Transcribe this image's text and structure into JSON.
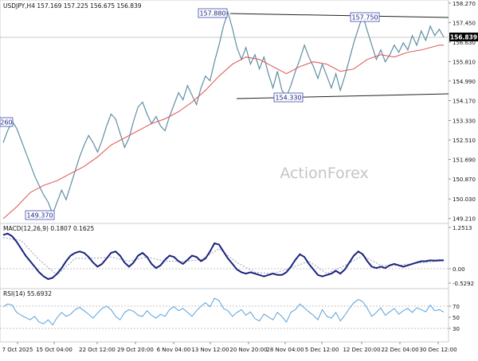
{
  "chart_data": [
    {
      "panel": "price",
      "type": "line",
      "title": "USDJPY,H4  157.169 157.225 156.675 156.839",
      "watermark": "ActionForex",
      "ylim": [
        149.0,
        158.4
      ],
      "y_ticks": [
        "158.270",
        "157.450",
        "156.630",
        "155.810",
        "154.990",
        "154.170",
        "153.330",
        "152.510",
        "151.690",
        "150.870",
        "150.030",
        "149.210"
      ],
      "current_price": "156.839",
      "series": [
        {
          "name": "USDJPY H4",
          "color": "#5f8fa3",
          "x": [
            0,
            2,
            4,
            6,
            8,
            10,
            12,
            14,
            16,
            18,
            20,
            22,
            24,
            26,
            28,
            30,
            32,
            34,
            36,
            38,
            40,
            42,
            44,
            46,
            48,
            50,
            52,
            54,
            56,
            58,
            60,
            62,
            64,
            66,
            68,
            70,
            72,
            74,
            76,
            78,
            80,
            82,
            84,
            86,
            88,
            90,
            92,
            94,
            96,
            98,
            100,
            102,
            104,
            106,
            108,
            110,
            112,
            114,
            116,
            118,
            120,
            122,
            124,
            126,
            128,
            130,
            132,
            134,
            136,
            138,
            140,
            142,
            144,
            146,
            148,
            150,
            152,
            154,
            156,
            158,
            160,
            162,
            164,
            166,
            168,
            170,
            172,
            174,
            176,
            178,
            180,
            182,
            184,
            186,
            188,
            190,
            192,
            194,
            196
          ],
          "values": [
            152.4,
            152.9,
            153.3,
            153.0,
            152.5,
            152.0,
            151.5,
            151.0,
            150.6,
            150.2,
            149.9,
            149.4,
            149.9,
            150.4,
            150.0,
            150.6,
            151.2,
            151.8,
            152.3,
            152.7,
            152.4,
            152.0,
            152.5,
            153.1,
            153.6,
            153.4,
            152.8,
            152.2,
            152.6,
            153.3,
            153.9,
            154.1,
            153.6,
            153.2,
            153.5,
            153.1,
            152.9,
            153.5,
            154.0,
            154.5,
            154.2,
            154.8,
            154.4,
            154.0,
            154.7,
            155.2,
            155.0,
            155.8,
            156.5,
            157.3,
            157.88,
            157.2,
            156.4,
            155.9,
            156.4,
            155.7,
            156.1,
            155.5,
            156.0,
            155.3,
            154.7,
            155.4,
            154.6,
            154.33,
            154.8,
            155.4,
            155.9,
            156.5,
            156.0,
            155.6,
            155.1,
            155.7,
            155.2,
            154.7,
            155.3,
            154.6,
            155.2,
            155.9,
            156.6,
            157.2,
            157.75,
            157.1,
            156.5,
            155.9,
            156.3,
            155.8,
            156.1,
            156.5,
            156.2,
            156.6,
            156.3,
            156.9,
            156.5,
            157.1,
            156.7,
            157.3,
            156.9,
            157.169,
            156.839
          ]
        },
        {
          "name": "Moving average",
          "color": "#e05050",
          "x": [
            0,
            6,
            12,
            18,
            24,
            30,
            36,
            42,
            48,
            54,
            60,
            66,
            72,
            78,
            84,
            90,
            96,
            102,
            108,
            114,
            120,
            126,
            132,
            138,
            144,
            150,
            156,
            162,
            168,
            174,
            180,
            186,
            190,
            194,
            196
          ],
          "values": [
            149.2,
            149.7,
            150.3,
            150.6,
            150.8,
            151.1,
            151.4,
            151.8,
            152.3,
            152.6,
            152.9,
            153.2,
            153.4,
            153.7,
            154.1,
            154.6,
            155.2,
            155.7,
            156.0,
            155.9,
            155.6,
            155.3,
            155.6,
            155.8,
            155.7,
            155.4,
            155.5,
            155.9,
            156.1,
            156.0,
            156.2,
            156.3,
            156.4,
            156.5,
            156.5
          ]
        }
      ],
      "annotations": [
        "157.880",
        "157.750",
        "154.330",
        "149.370",
        "260"
      ]
    },
    {
      "panel": "macd",
      "type": "line",
      "title": "MACD(12,26,9) 0.1807 0.1625",
      "ylim": [
        -0.7,
        1.4
      ],
      "y_ticks": [
        "1.2513",
        "0.00",
        "-0.5292"
      ],
      "series": [
        {
          "name": "MACD",
          "color": "#1a237e",
          "x": [
            0,
            2,
            4,
            6,
            8,
            10,
            12,
            14,
            16,
            18,
            20,
            22,
            24,
            26,
            28,
            30,
            32,
            34,
            36,
            38,
            40,
            42,
            44,
            46,
            48,
            50,
            52,
            54,
            56,
            58,
            60,
            62,
            64,
            66,
            68,
            70,
            72,
            74,
            76,
            78,
            80,
            82,
            84,
            86,
            88,
            90,
            92,
            94,
            96,
            98,
            100,
            102,
            104,
            106,
            108,
            110,
            112,
            114,
            116,
            118,
            120,
            122,
            124,
            126,
            128,
            130,
            132,
            134,
            136,
            138,
            140,
            142,
            144,
            146,
            148,
            150,
            152,
            154,
            156,
            158,
            160,
            162,
            164,
            166,
            168,
            170,
            172,
            174,
            176,
            178,
            180,
            182,
            184,
            186,
            188,
            190,
            192,
            194,
            196
          ],
          "values": [
            1.1,
            1.15,
            1.05,
            0.85,
            0.6,
            0.35,
            0.15,
            -0.05,
            -0.25,
            -0.4,
            -0.5,
            -0.45,
            -0.3,
            -0.1,
            0.15,
            0.35,
            0.45,
            0.5,
            0.45,
            0.3,
            0.1,
            -0.05,
            0.05,
            0.25,
            0.45,
            0.5,
            0.35,
            0.1,
            -0.05,
            0.1,
            0.35,
            0.45,
            0.3,
            0.05,
            -0.1,
            0.0,
            0.2,
            0.35,
            0.3,
            0.15,
            0.05,
            0.2,
            0.35,
            0.3,
            0.15,
            0.25,
            0.5,
            0.8,
            0.75,
            0.5,
            0.25,
            0.05,
            -0.15,
            -0.25,
            -0.3,
            -0.25,
            -0.3,
            -0.35,
            -0.4,
            -0.35,
            -0.3,
            -0.35,
            -0.35,
            -0.25,
            -0.05,
            0.2,
            0.4,
            0.3,
            0.05,
            -0.15,
            -0.35,
            -0.4,
            -0.35,
            -0.3,
            -0.2,
            -0.3,
            -0.15,
            0.1,
            0.35,
            0.5,
            0.4,
            0.15,
            -0.05,
            -0.1,
            -0.05,
            -0.1,
            0.0,
            0.05,
            0.0,
            -0.05,
            0.0,
            0.05,
            0.1,
            0.15,
            0.15,
            0.18,
            0.17,
            0.18,
            0.1807
          ]
        },
        {
          "name": "Signal",
          "color": "#9aa0b5",
          "x": [
            0,
            8,
            16,
            24,
            32,
            40,
            48,
            56,
            64,
            72,
            80,
            88,
            96,
            104,
            112,
            120,
            128,
            136,
            144,
            152,
            160,
            168,
            176,
            184,
            196
          ],
          "values": [
            1.0,
            0.9,
            0.2,
            -0.35,
            0.25,
            0.25,
            0.3,
            0.15,
            0.3,
            0.15,
            0.15,
            0.2,
            0.6,
            0.1,
            -0.25,
            -0.3,
            -0.1,
            0.15,
            -0.3,
            0.0,
            0.35,
            0.0,
            0.0,
            0.08,
            0.1625
          ]
        }
      ]
    },
    {
      "panel": "rsi",
      "type": "line",
      "title": "RSI(14) 55.6932",
      "ylim": [
        10,
        90
      ],
      "y_ticks": [
        "70",
        "50",
        "30"
      ],
      "series": [
        {
          "name": "RSI(14)",
          "color": "#5aa0d8",
          "x": [
            0,
            2,
            4,
            6,
            8,
            10,
            12,
            14,
            16,
            18,
            20,
            22,
            24,
            26,
            28,
            30,
            32,
            34,
            36,
            38,
            40,
            42,
            44,
            46,
            48,
            50,
            52,
            54,
            56,
            58,
            60,
            62,
            64,
            66,
            68,
            70,
            72,
            74,
            76,
            78,
            80,
            82,
            84,
            86,
            88,
            90,
            92,
            94,
            96,
            98,
            100,
            102,
            104,
            106,
            108,
            110,
            112,
            114,
            116,
            118,
            120,
            122,
            124,
            126,
            128,
            130,
            132,
            134,
            136,
            138,
            140,
            142,
            144,
            146,
            148,
            150,
            152,
            154,
            156,
            158,
            160,
            162,
            164,
            166,
            168,
            170,
            172,
            174,
            176,
            178,
            180,
            182,
            184,
            186,
            188,
            190,
            192,
            194,
            196
          ],
          "values": [
            65,
            70,
            68,
            55,
            50,
            46,
            42,
            48,
            38,
            35,
            42,
            33,
            46,
            55,
            48,
            52,
            60,
            64,
            58,
            52,
            45,
            54,
            62,
            66,
            60,
            48,
            42,
            55,
            60,
            57,
            50,
            48,
            58,
            50,
            45,
            52,
            48,
            60,
            65,
            58,
            62,
            55,
            48,
            58,
            66,
            72,
            65,
            80,
            76,
            62,
            58,
            48,
            55,
            60,
            50,
            56,
            44,
            40,
            52,
            47,
            42,
            55,
            48,
            38,
            55,
            60,
            70,
            63,
            56,
            50,
            42,
            60,
            48,
            45,
            55,
            40,
            50,
            62,
            72,
            78,
            74,
            62,
            48,
            55,
            63,
            50,
            56,
            62,
            52,
            58,
            62,
            55,
            63,
            60,
            56,
            68,
            58,
            60,
            55.69
          ]
        }
      ]
    }
  ],
  "x_axis": {
    "labels": [
      "7 Oct 2025",
      "15 Oct 04:00",
      "22 Oct 12:00",
      "29 Oct 20:00",
      "6 Nov 04:00",
      "13 Nov 12:00",
      "20 Nov 20:00",
      "28 Nov 04:00",
      "5 Dec 12:00",
      "12 Dec 20:00",
      "22 Dec 04:00",
      "30 Dec 12:00"
    ]
  }
}
